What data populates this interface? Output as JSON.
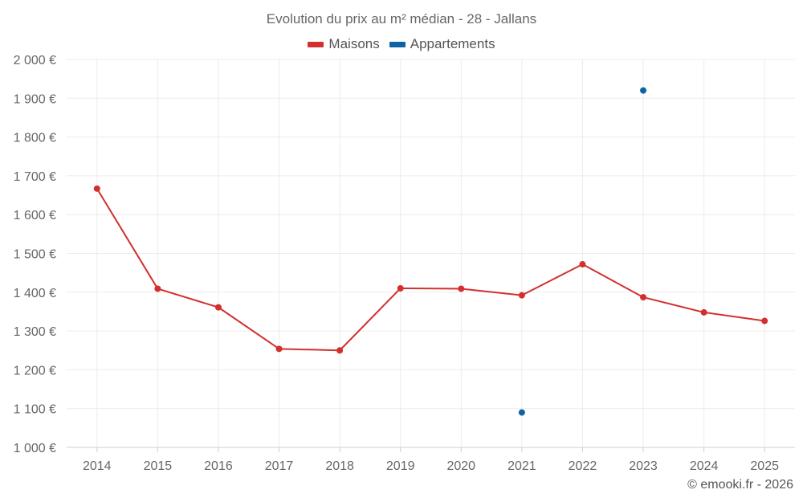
{
  "colors": {
    "maisons": "#d32f2f",
    "appartements": "#0d64a5",
    "grid": "#ececec"
  },
  "credit": "© emooki.fr - 2026",
  "chart_data": {
    "type": "line",
    "title": "Evolution du prix au m² médian - 28 - Jallans",
    "categories": [
      "2014",
      "2015",
      "2016",
      "2017",
      "2018",
      "2019",
      "2020",
      "2021",
      "2022",
      "2023",
      "2024",
      "2025"
    ],
    "ylim": [
      1000,
      2000
    ],
    "yticks": [
      1000,
      1100,
      1200,
      1300,
      1400,
      1500,
      1600,
      1700,
      1800,
      1900,
      2000
    ],
    "ytick_labels": [
      "1 000 €",
      "1 100 €",
      "1 200 €",
      "1 300 €",
      "1 400 €",
      "1 500 €",
      "1 600 €",
      "1 700 €",
      "1 800 €",
      "1 900 €",
      "2 000 €"
    ],
    "grid": true,
    "legend_position": "top-center",
    "series": [
      {
        "name": "Maisons",
        "color": "#d32f2f",
        "values": [
          1667,
          1409,
          1361,
          1254,
          1250,
          1410,
          1409,
          1392,
          1472,
          1387,
          1348,
          1326
        ]
      },
      {
        "name": "Appartements",
        "color": "#0d64a5",
        "values": [
          null,
          null,
          null,
          null,
          null,
          null,
          null,
          1090,
          null,
          1920,
          null,
          null
        ]
      }
    ]
  }
}
